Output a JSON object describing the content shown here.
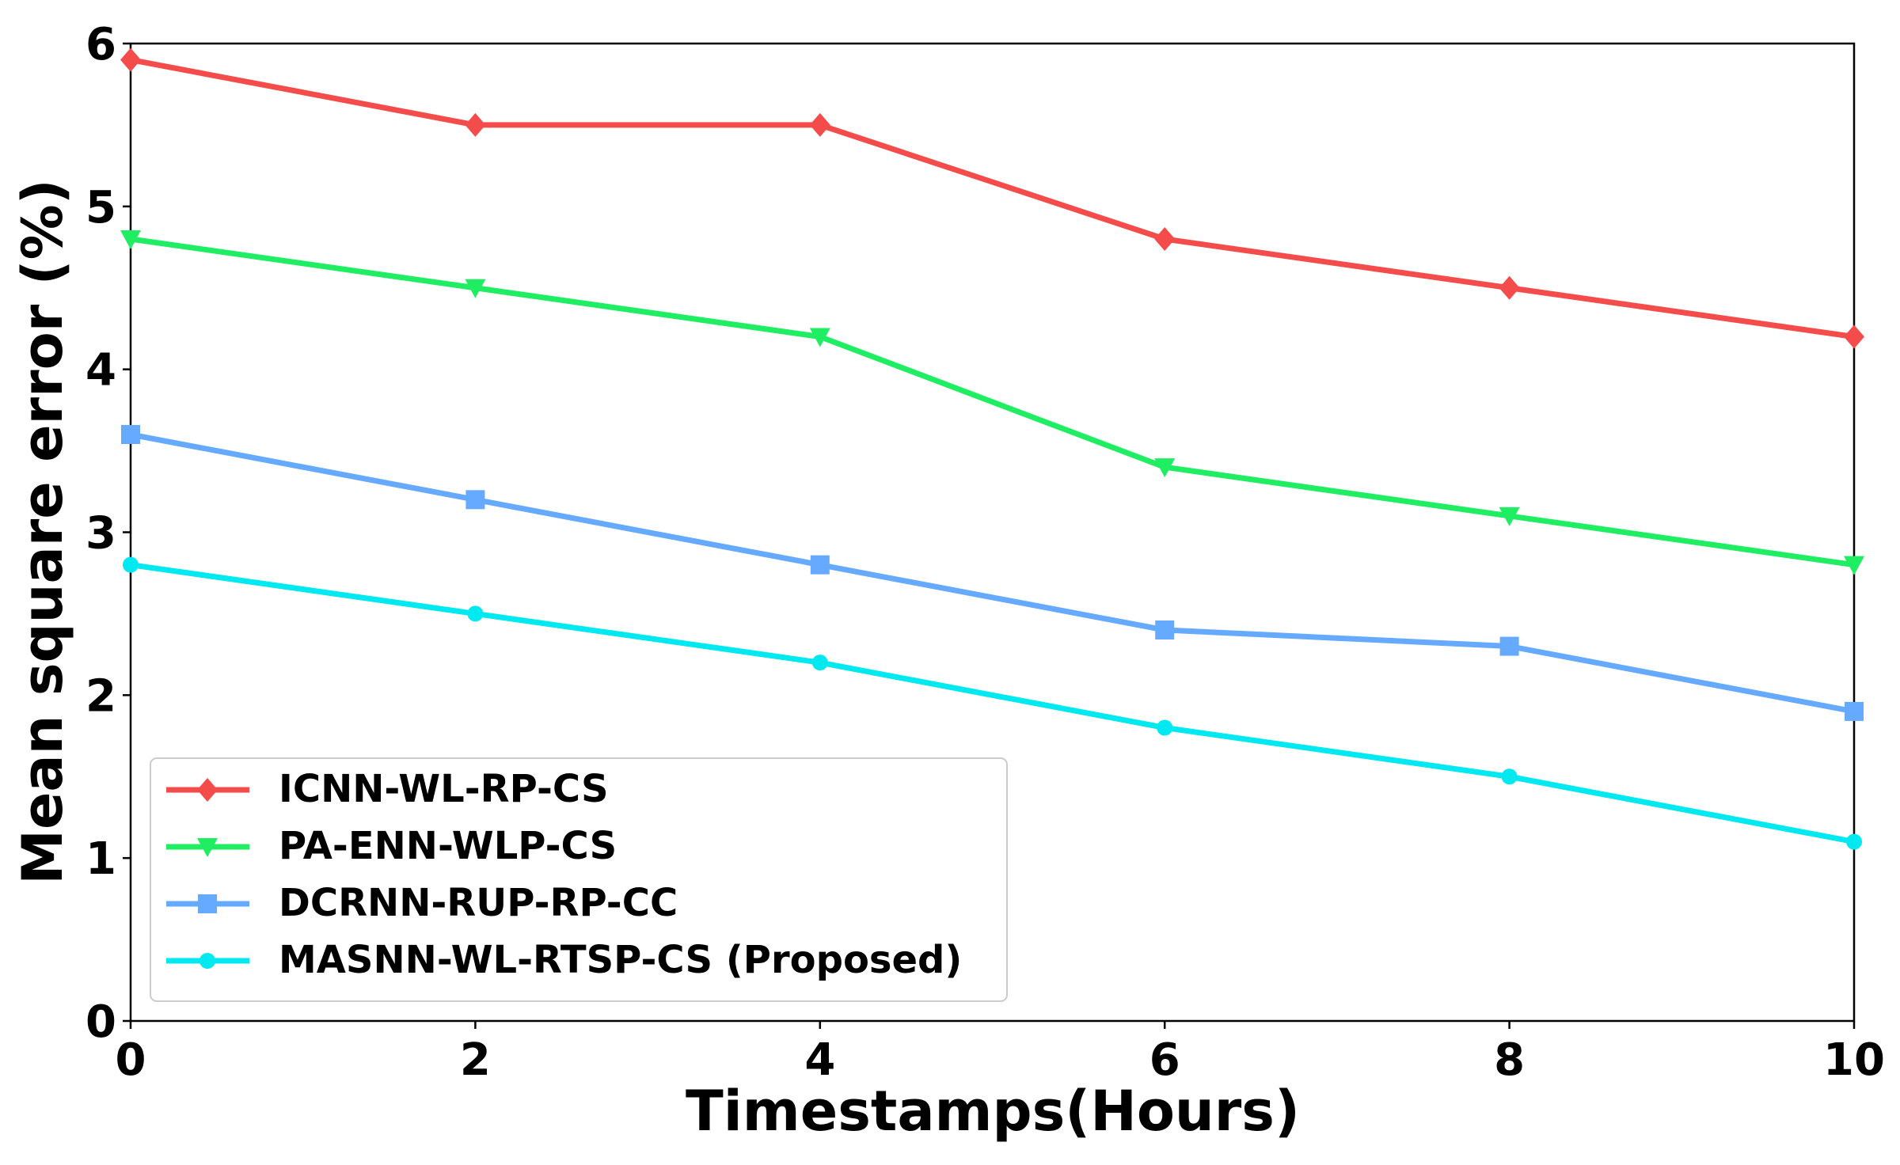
{
  "chart_data": {
    "type": "line",
    "x_label": "Timestamps(Hours)",
    "y_label": "Mean square error (%)",
    "x": [
      0,
      2,
      4,
      6,
      8,
      10
    ],
    "xlim": [
      0,
      10
    ],
    "xticks": [
      0,
      2,
      4,
      6,
      8,
      10
    ],
    "ylim": [
      0,
      6
    ],
    "yticks": [
      0,
      1,
      2,
      3,
      4,
      5,
      6
    ],
    "legend": "lower left",
    "series": [
      {
        "name": "ICNN-WL-RP-CS",
        "color": "#f44b4b",
        "marker": "diamond",
        "values": [
          5.9,
          5.5,
          5.5,
          4.8,
          4.5,
          4.2
        ]
      },
      {
        "name": "PA-ENN-WLP-CS",
        "color": "#1fee63",
        "marker": "triangle-down",
        "values": [
          4.8,
          4.5,
          4.2,
          3.4,
          3.1,
          2.8
        ]
      },
      {
        "name": "DCRNN-RUP-RP-CC",
        "color": "#66aaff",
        "marker": "square",
        "values": [
          3.6,
          3.2,
          2.8,
          2.4,
          2.3,
          1.9
        ]
      },
      {
        "name": "MASNN-WL-RTSP-CS (Proposed)",
        "color": "#00e8f0",
        "marker": "circle",
        "values": [
          2.8,
          2.5,
          2.2,
          1.8,
          1.5,
          1.1
        ]
      }
    ]
  }
}
